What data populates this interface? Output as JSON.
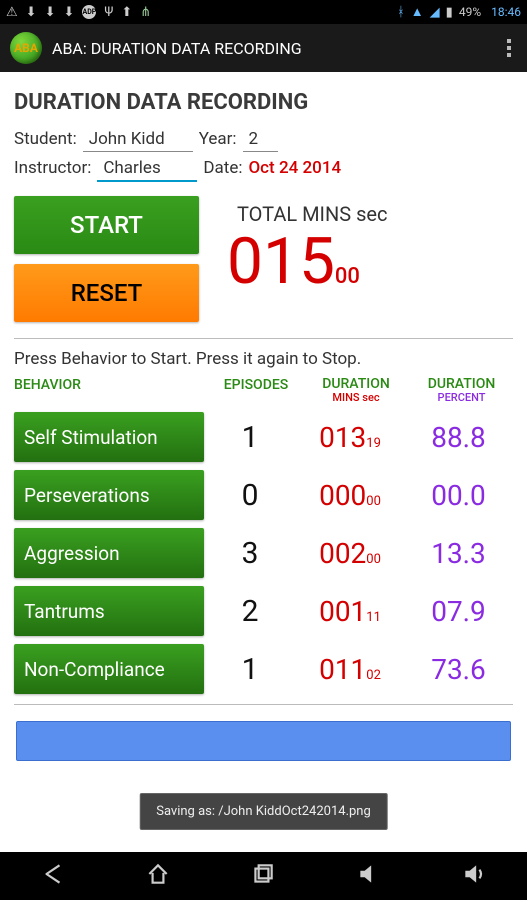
{
  "status_bar": {
    "battery_text": "49%",
    "time": "18:46"
  },
  "app_bar": {
    "logo_text": "ABA",
    "title": "ABA: DURATION DATA RECORDING"
  },
  "page_title": "DURATION DATA RECORDING",
  "form": {
    "student_label": "Student:",
    "student_value": "John Kidd",
    "year_label": "Year:",
    "year_value": "2",
    "instructor_label": "Instructor:",
    "instructor_value": "Charles",
    "date_label": "Date:",
    "date_value": "Oct 24 2014"
  },
  "controls": {
    "start_label": "START",
    "reset_label": "RESET",
    "total_label": "TOTAL MINS sec",
    "total_mins": "015",
    "total_sec": "00"
  },
  "instructions": "Press Behavior to Start. Press it again to Stop.",
  "headers": {
    "behavior": "BEHAVIOR",
    "episodes": "EPISODES",
    "duration": "DURATION",
    "duration_sub": "MINS sec",
    "percent": "DURATION",
    "percent_sub": "PERCENT"
  },
  "rows": [
    {
      "name": "Self Stimulation",
      "episodes": "1",
      "dur_min": "013",
      "dur_sec": "19",
      "pct": "88.8"
    },
    {
      "name": "Perseverations",
      "episodes": "0",
      "dur_min": "000",
      "dur_sec": "00",
      "pct": "00.0"
    },
    {
      "name": "Aggression",
      "episodes": "3",
      "dur_min": "002",
      "dur_sec": "00",
      "pct": "13.3"
    },
    {
      "name": "Tantrums",
      "episodes": "2",
      "dur_min": "001",
      "dur_sec": "11",
      "pct": "07.9"
    },
    {
      "name": "Non-Compliance",
      "episodes": "1",
      "dur_min": "011",
      "dur_sec": "02",
      "pct": "73.6"
    }
  ],
  "toast": "Saving as: /John KiddOct242014.png",
  "colors": {
    "green_btn_top": "#3aa020",
    "green_btn_bot": "#237010",
    "orange_top": "#ff9a1a",
    "orange_bot": "#ff7b00",
    "red_text": "#d40000",
    "purple_text": "#8a2be2",
    "blue_bar": "#5a8ff0"
  }
}
